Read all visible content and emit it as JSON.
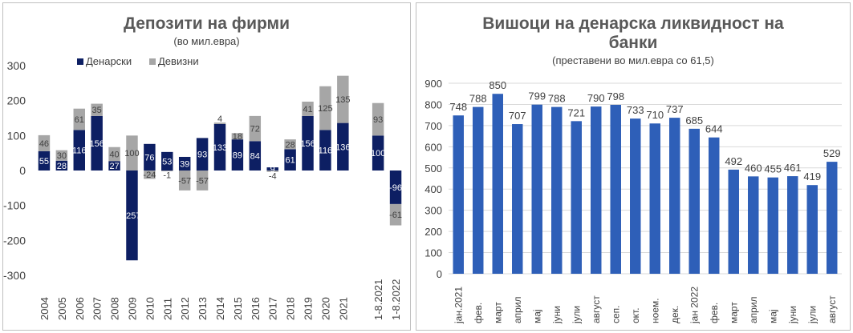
{
  "colors": {
    "denarski": "#0d1f63",
    "devizni": "#a6a6a6",
    "bar_blue": "#2e5fb8",
    "grid": "#d9d9d9"
  },
  "chart_data": [
    {
      "type": "bar",
      "stacked": true,
      "title": "Депозити на фирми",
      "subtitle": "(во мил.евра)",
      "categories": [
        "2004",
        "2005",
        "2006",
        "2007",
        "2008",
        "2009",
        "2010",
        "2011",
        "2012",
        "2013",
        "2014",
        "2015",
        "2016",
        "2017",
        "2018",
        "2019",
        "2020",
        "2021",
        "1-8.2021",
        "1-8.2022"
      ],
      "series": [
        {
          "name": "Денарски",
          "values": [
            55,
            28,
            116,
            156,
            27,
            -257,
            76,
            53,
            39,
            93,
            133,
            89,
            84,
            9,
            61,
            156,
            116,
            136,
            100,
            -96
          ],
          "labels": [
            "55",
            "28",
            "116",
            "156",
            "27",
            "-257",
            "76",
            "53",
            "39",
            "93",
            "133",
            "89",
            "84",
            "9",
            "61",
            "156",
            "116",
            "136",
            "100",
            "-96"
          ]
        },
        {
          "name": "Девизни",
          "values": [
            46,
            30,
            61,
            35,
            40,
            100,
            -24,
            -1,
            -57,
            -57,
            4,
            18,
            72,
            -4,
            28,
            41,
            125,
            135,
            93,
            -61
          ],
          "labels": [
            "46",
            "30",
            "61",
            "35",
            "40",
            "100",
            "-24",
            "-1",
            "-57",
            "-57",
            "4",
            "18",
            "72",
            "-4",
            "28",
            "41",
            "125",
            "135",
            "93",
            "-61"
          ]
        }
      ],
      "ylim": [
        -300,
        300
      ],
      "yticks": [
        "-300",
        "-200",
        "-100",
        "0",
        "100",
        "200",
        "300"
      ],
      "legend": "top"
    },
    {
      "type": "bar",
      "title_lines": [
        "Вишоци на денарска ликвидност на",
        "банки"
      ],
      "subtitle": "(преставени во мил.евра со 61,5)",
      "categories": [
        "јан.2021",
        "фев.",
        "март",
        "април",
        "мај",
        "јуни",
        "јули",
        "август",
        "сеп.",
        "окт.",
        "ноем.",
        "дек.",
        "јан 2022",
        "фев.",
        "март",
        "април",
        "мај",
        "јуни",
        "јули",
        "август"
      ],
      "values": [
        748,
        788,
        850,
        707,
        799,
        788,
        721,
        790,
        798,
        733,
        710,
        737,
        685,
        644,
        492,
        460,
        455,
        461,
        419,
        529
      ],
      "labels": [
        "748",
        "788",
        "850",
        "707",
        "799",
        "788",
        "721",
        "790",
        "798",
        "733",
        "710",
        "737",
        "685",
        "644",
        "492",
        "460",
        "455",
        "461",
        "419",
        "529"
      ],
      "ylim": [
        0,
        900
      ],
      "yticks": [
        "0",
        "100",
        "200",
        "300",
        "400",
        "500",
        "600",
        "700",
        "800",
        "900"
      ],
      "grid": true
    }
  ]
}
